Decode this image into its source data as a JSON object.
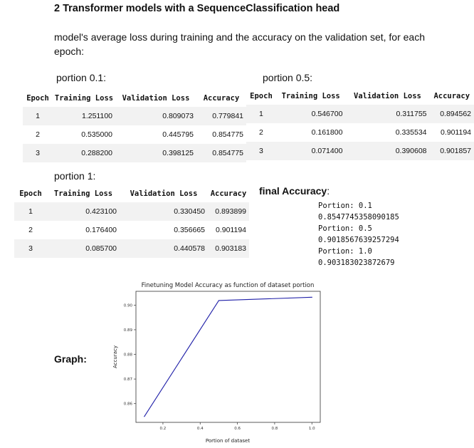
{
  "heading": "2 Transformer models with a SequenceClassification head",
  "intro": "model's average loss during training and the accuracy on the validation set, for each epoch:",
  "tables": {
    "headers": [
      "Epoch",
      "Training Loss",
      "Validation Loss",
      "Accuracy"
    ],
    "p01": {
      "label": "portion 0.1:",
      "rows": [
        [
          "1",
          "1.251100",
          "0.809073",
          "0.779841"
        ],
        [
          "2",
          "0.535000",
          "0.445795",
          "0.854775"
        ],
        [
          "3",
          "0.288200",
          "0.398125",
          "0.854775"
        ]
      ]
    },
    "p05": {
      "label": "portion 0.5:",
      "rows": [
        [
          "1",
          "0.546700",
          "0.311755",
          "0.894562"
        ],
        [
          "2",
          "0.161800",
          "0.335534",
          "0.901194"
        ],
        [
          "3",
          "0.071400",
          "0.390608",
          "0.901857"
        ]
      ]
    },
    "p1": {
      "label": "portion 1:",
      "rows": [
        [
          "1",
          "0.423100",
          "0.330450",
          "0.893899"
        ],
        [
          "2",
          "0.176400",
          "0.356665",
          "0.901194"
        ],
        [
          "3",
          "0.085700",
          "0.440578",
          "0.903183"
        ]
      ]
    }
  },
  "final": {
    "label": "final Accuracy",
    "colon": ":",
    "lines": [
      "Portion: 0.1",
      "0.8547745358090185",
      "Portion: 0.5",
      "0.9018567639257294",
      "Portion: 1.0",
      "0.903183023872679"
    ]
  },
  "graph_label": "Graph:",
  "chart_data": {
    "type": "line",
    "title": "Finetuning Model Accuracy as function of dataset portion",
    "xlabel": "Portion of dataset",
    "ylabel": "Accuracy",
    "x": [
      0.1,
      0.5,
      1.0
    ],
    "series": [
      {
        "values": [
          0.8547745358090185,
          0.9018567639257294,
          0.903183023872679
        ]
      }
    ],
    "xticks": [
      0.2,
      0.4,
      0.6,
      0.8,
      1.0
    ],
    "xtick_labels": [
      "0.2",
      "0.4",
      "0.6",
      "0.8",
      "1.0"
    ],
    "yticks": [
      0.86,
      0.87,
      0.88,
      0.89,
      0.9
    ],
    "ytick_labels": [
      "0.86",
      "0.87",
      "0.88",
      "0.89",
      "0.90"
    ],
    "xlim": [
      0.055,
      1.045
    ],
    "ylim": [
      0.8524,
      0.9056
    ],
    "grid": false,
    "line_color": "#1f1fa8"
  }
}
